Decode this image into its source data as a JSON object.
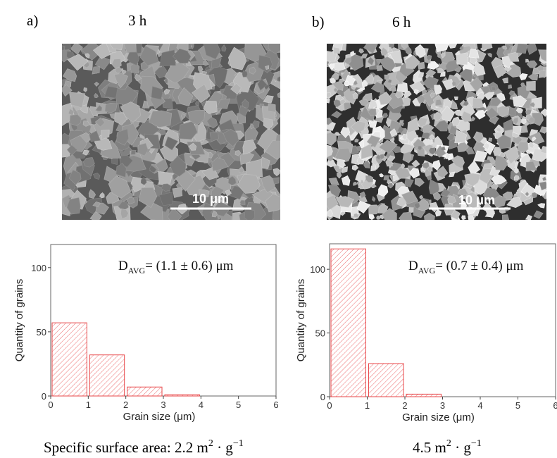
{
  "panels": [
    {
      "label": "a)",
      "time": "3 h",
      "scale_bar": "10 μm",
      "surface_area": {
        "prefix": "Specific surface area: 2.2 m",
        "exp1": "2",
        "mid": " · g",
        "exp2": "−1"
      }
    },
    {
      "label": "b)",
      "time": "6 h",
      "scale_bar": "10 μm",
      "surface_area": {
        "prefix": "4.5 m",
        "exp1": "2",
        "mid": " · g",
        "exp2": "−1"
      }
    }
  ],
  "chart_data": [
    {
      "type": "histogram",
      "bins": [
        0,
        1,
        2,
        3,
        4
      ],
      "values": [
        57,
        32,
        7,
        1
      ],
      "color": "#e8474a",
      "xlim": [
        0,
        6
      ],
      "xticks": [
        0,
        1,
        2,
        3,
        4,
        5,
        6
      ],
      "ylim": [
        0,
        118
      ],
      "yticks": [
        0,
        50,
        100
      ],
      "x_label": "Grain size (μm)",
      "y_label": "Quantity of grains",
      "annotation": {
        "main": "D",
        "sub": "AVG",
        "rest": "= (1.1 ± 0.6) μm"
      }
    },
    {
      "type": "histogram",
      "bins": [
        0,
        1,
        2,
        3
      ],
      "values": [
        116,
        26,
        2
      ],
      "color": "#e8474a",
      "xlim": [
        0,
        6
      ],
      "xticks": [
        0,
        1,
        2,
        3,
        4,
        5,
        6
      ],
      "ylim": [
        0,
        120
      ],
      "yticks": [
        0,
        50,
        100
      ],
      "x_label": "Grain size (μm)",
      "y_label": "Quantity of grains",
      "annotation": {
        "main": "D",
        "sub": "AVG",
        "rest": "= (0.7 ± 0.4) μm"
      }
    }
  ]
}
